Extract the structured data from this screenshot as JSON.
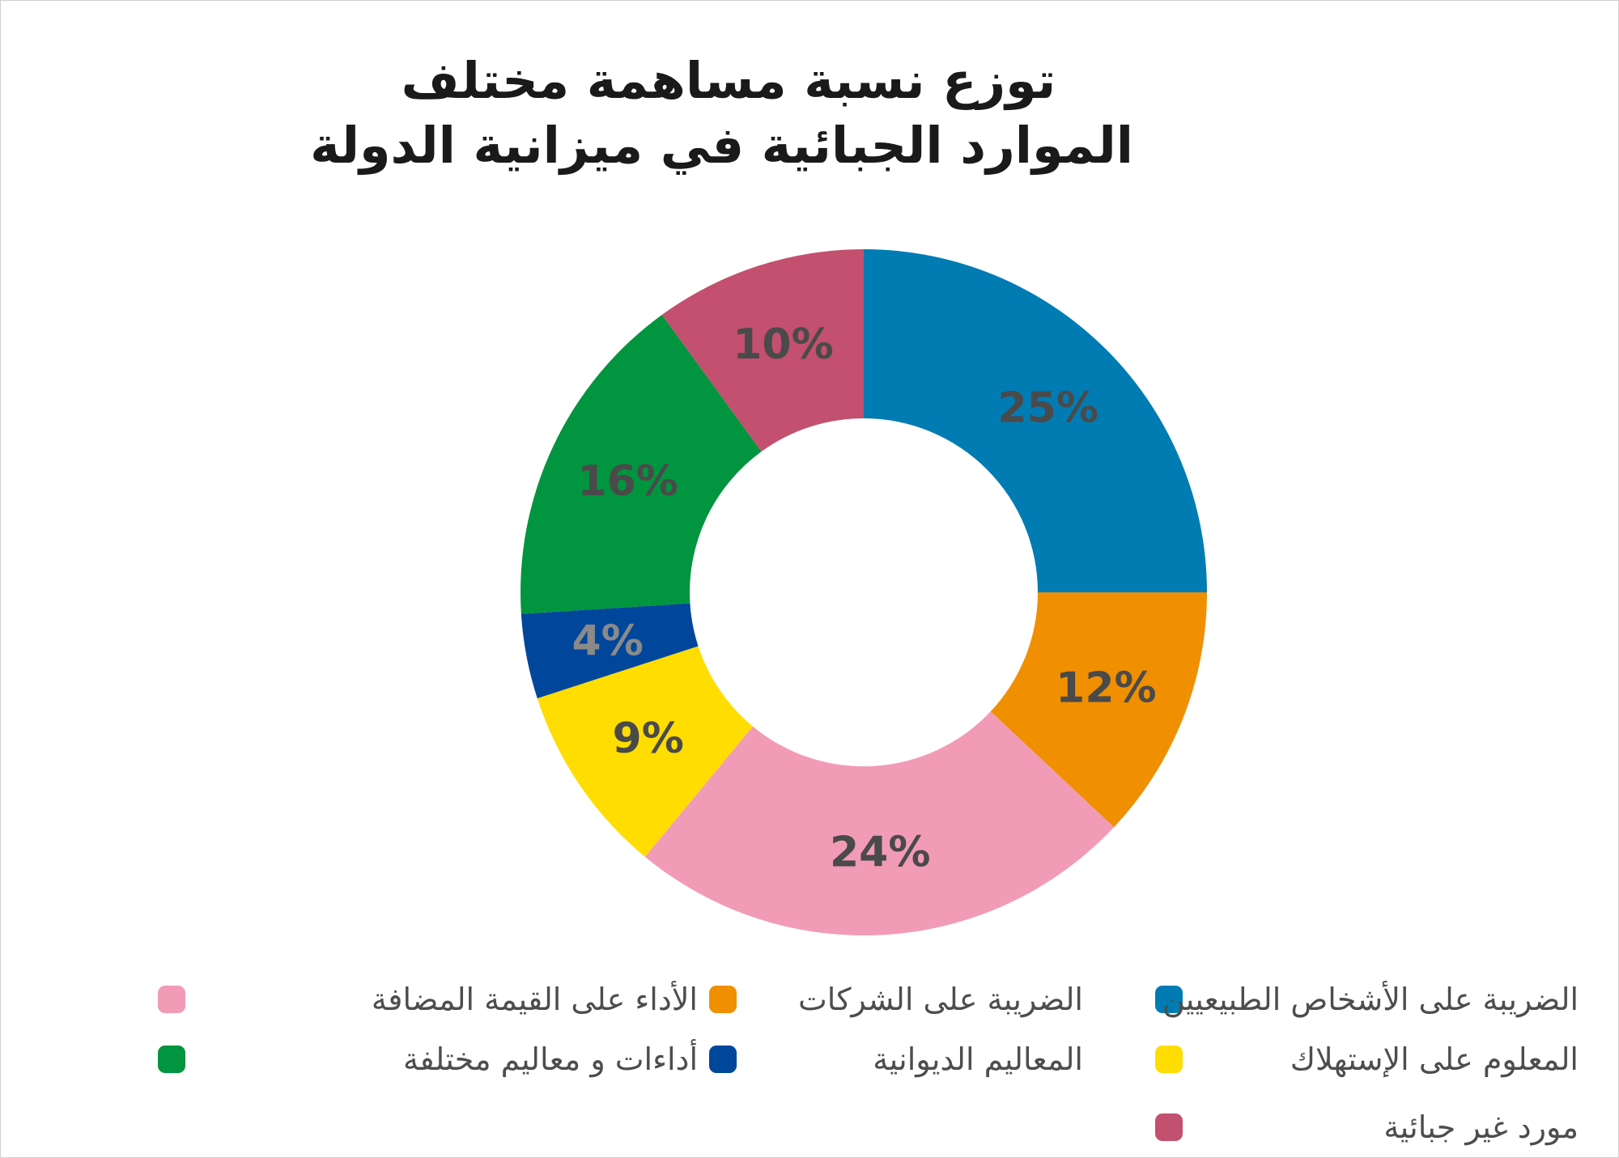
{
  "title": {
    "line1": "توزع نسبة مساهمة مختلف",
    "line2": "الموارد الجبائية في ميزانية الدولة"
  },
  "chart_data": {
    "type": "donut",
    "title": "توزع نسبة مساهمة مختلف الموارد الجبائية في ميزانية الدولة",
    "unit": "%",
    "categories": [
      "الضريبة على الأشخاص الطبيعيين",
      "الضريبة على الشركات",
      "الأداء على القيمة المضافة",
      "المعلوم على الإستهلاك",
      "المعاليم الديوانية",
      "أداءات و معاليم مختلفة",
      "مورد غير جبائية"
    ],
    "values": [
      25,
      12,
      24,
      9,
      4,
      16,
      10
    ],
    "data_labels": [
      "25%",
      "12%",
      "24%",
      "9%",
      "4%",
      "16%",
      "10%"
    ],
    "colors": [
      "#007cb3",
      "#f08f00",
      "#f29bb6",
      "#ffdd00",
      "#00479b",
      "#00953e",
      "#c2506e"
    ],
    "label_colors": [
      "#4a4a4a",
      "#4a4a4a",
      "#4a4a4a",
      "#4a4a4a",
      "#8a8a8a",
      "#4a4a4a",
      "#4a4a4a"
    ],
    "start_angle_deg": 0,
    "direction": "clockwise",
    "legend_position": "bottom"
  }
}
